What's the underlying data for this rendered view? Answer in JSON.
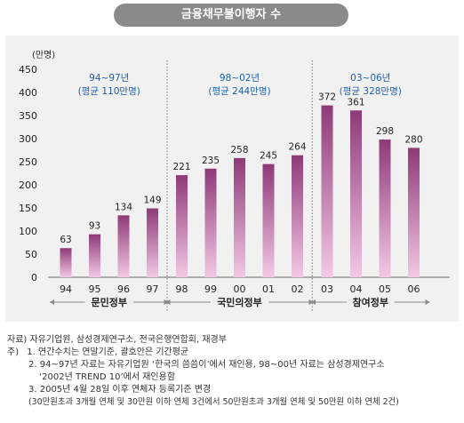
{
  "title": "금융채무불이행자 수",
  "chart_data": {
    "type": "bar",
    "ylabel": "(만명)",
    "ylim": [
      0,
      450
    ],
    "yticks": [
      0,
      50,
      100,
      150,
      200,
      250,
      300,
      350,
      400,
      450
    ],
    "categories": [
      "94",
      "95",
      "96",
      "97",
      "98",
      "99",
      "00",
      "01",
      "02",
      "03",
      "04",
      "05",
      "06"
    ],
    "values": [
      63,
      93,
      134,
      149,
      221,
      235,
      258,
      245,
      264,
      372,
      361,
      298,
      280
    ],
    "periods": [
      {
        "name": "문민정부",
        "range_label": "94~97년",
        "avg_label": "(평균 110만명)",
        "start": 0,
        "end": 3
      },
      {
        "name": "국민의정부",
        "range_label": "98~02년",
        "avg_label": "(평균 244만명)",
        "start": 4,
        "end": 8
      },
      {
        "name": "참여정부",
        "range_label": "03~06년",
        "avg_label": "(평균 328만명)",
        "start": 9,
        "end": 12
      }
    ],
    "colors": {
      "bar_top": "#8e3a78",
      "bar_bottom": "#f3c8e4",
      "annotation": "#1a5fb4",
      "panel": "#f1f1f1"
    }
  },
  "notes": {
    "source": "자료) 자유기업원, 삼성경제연구소, 전국은행연합회, 재경부",
    "notes_label": "주)",
    "note1": "1. 연간수치는 연말기준, 괄호안은 기간평균",
    "note2": "2. 94~97년 자료는 자유기업원 ‘한국의 씀씀이’에서 재인용, 98~00년 자료는 삼성경제연구소",
    "note2b": "‘2002년 TREND 10’에서 재인용함",
    "note3": "3. 2005년 4월 28일 이후 연체자 등록기준 변경",
    "note3b": "(30만원초과 3개월 연체 및 30만원 이하 연체 3건에서 50만원초과 3개월 연체 및 50만원 이하 연체 2건)"
  }
}
